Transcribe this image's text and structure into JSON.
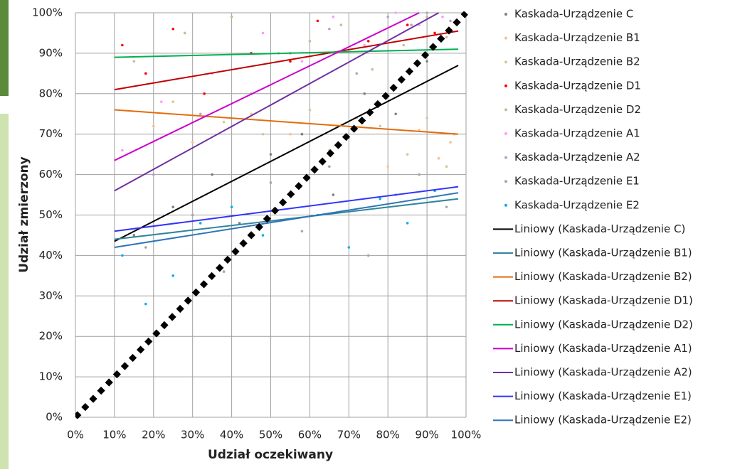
{
  "chart_data": {
    "type": "scatter",
    "xlabel": "Udział oczekiwany",
    "ylabel": "Udział zmierzony",
    "xlim": [
      0,
      100
    ],
    "ylim": [
      0,
      100
    ],
    "grid": true,
    "legend": "right",
    "xticks": [
      {
        "value": 0,
        "label": "0%"
      },
      {
        "value": 10,
        "label": "10%"
      },
      {
        "value": 20,
        "label": "20%"
      },
      {
        "value": 30,
        "label": "30%"
      },
      {
        "value": 40,
        "label": "40%"
      },
      {
        "value": 50,
        "label": "50%"
      },
      {
        "value": 60,
        "label": "60%"
      },
      {
        "value": 70,
        "label": "70%"
      },
      {
        "value": 80,
        "label": "80%"
      },
      {
        "value": 90,
        "label": "90%"
      },
      {
        "value": 100,
        "label": "100%"
      }
    ],
    "yticks": [
      {
        "value": 0,
        "label": "0%"
      },
      {
        "value": 10,
        "label": "10%"
      },
      {
        "value": 20,
        "label": "20%"
      },
      {
        "value": 30,
        "label": "30%"
      },
      {
        "value": 40,
        "label": "40%"
      },
      {
        "value": 50,
        "label": "50%"
      },
      {
        "value": 60,
        "label": "60%"
      },
      {
        "value": 70,
        "label": "70%"
      },
      {
        "value": 80,
        "label": "80%"
      },
      {
        "value": 90,
        "label": "90%"
      },
      {
        "value": 100,
        "label": "100%"
      }
    ],
    "reference_line": {
      "color": "#000000",
      "x": [
        0,
        100
      ],
      "values": [
        0,
        100
      ]
    },
    "series": [
      {
        "name": "Kaskada-Urządzenie C",
        "kind": "scatter",
        "color": "#7f7f7f",
        "x": [
          15,
          25,
          35,
          42,
          50,
          58,
          66,
          74,
          82,
          90
        ],
        "values": [
          45,
          52,
          60,
          48,
          65,
          70,
          55,
          80,
          75,
          88
        ]
      },
      {
        "name": "Kaskada-Urządzenie B1",
        "kind": "scatter",
        "color": "#fac090",
        "x": [
          20,
          30,
          45,
          55,
          65,
          72,
          80,
          88,
          93,
          96
        ],
        "values": [
          72,
          68,
          75,
          70,
          66,
          74,
          62,
          71,
          64,
          68
        ]
      },
      {
        "name": "Kaskada-Urządzenie B2",
        "kind": "scatter",
        "color": "#d9c59a",
        "x": [
          25,
          38,
          48,
          60,
          70,
          78,
          85,
          90,
          95,
          97
        ],
        "values": [
          78,
          73,
          70,
          76,
          69,
          72,
          65,
          74,
          62,
          70
        ]
      },
      {
        "name": "Kaskada-Urządzenie D1",
        "kind": "scatter",
        "color": "#ff0000",
        "x": [
          12,
          18,
          25,
          33,
          45,
          55,
          62,
          75,
          85,
          92
        ],
        "values": [
          92,
          85,
          96,
          80,
          90,
          88,
          98,
          93,
          97,
          95
        ]
      },
      {
        "name": "Kaskada-Urządzenie D2",
        "kind": "scatter",
        "color": "#c4bd97",
        "x": [
          15,
          28,
          40,
          52,
          60,
          68,
          76,
          84,
          90,
          95
        ],
        "values": [
          88,
          95,
          99,
          90,
          93,
          97,
          86,
          92,
          99,
          94
        ]
      },
      {
        "name": "Kaskada-Urządzenie A1",
        "kind": "scatter",
        "color": "#ff99ff",
        "x": [
          12,
          22,
          35,
          48,
          58,
          66,
          74,
          82,
          88,
          94
        ],
        "values": [
          66,
          78,
          85,
          95,
          88,
          99,
          92,
          100,
          97,
          99
        ]
      },
      {
        "name": "Kaskada-Urządzenie A2",
        "kind": "scatter",
        "color": "#b3a2c7",
        "x": [
          20,
          32,
          45,
          55,
          65,
          72,
          80,
          86,
          90,
          96
        ],
        "values": [
          60,
          75,
          80,
          90,
          96,
          85,
          99,
          97,
          100,
          98
        ]
      },
      {
        "name": "Kaskada-Urządzenie E1",
        "kind": "scatter",
        "color": "#a6a6a6",
        "x": [
          18,
          30,
          38,
          50,
          58,
          65,
          75,
          82,
          88,
          95
        ],
        "values": [
          42,
          50,
          36,
          58,
          46,
          62,
          40,
          55,
          60,
          52
        ]
      },
      {
        "name": "Kaskada-Urządzenie E2",
        "kind": "scatter",
        "color": "#00b0f0",
        "x": [
          12,
          18,
          25,
          32,
          40,
          48,
          55,
          62,
          70,
          78,
          85,
          92
        ],
        "values": [
          40,
          28,
          35,
          48,
          52,
          45,
          55,
          50,
          42,
          54,
          48,
          56
        ]
      },
      {
        "name": "Liniowy (Kaskada-Urządzenie C)",
        "kind": "line",
        "color": "#000000",
        "x": [
          10,
          98
        ],
        "values": [
          43.5,
          87
        ]
      },
      {
        "name": "Liniowy (Kaskada-Urządzenie B1)",
        "kind": "line",
        "color": "#31859c",
        "x": [
          10,
          98
        ],
        "values": [
          44,
          54
        ]
      },
      {
        "name": "Liniowy (Kaskada-Urządzenie B2)",
        "kind": "line",
        "color": "#e46c0a",
        "x": [
          10,
          98
        ],
        "values": [
          76,
          70
        ]
      },
      {
        "name": "Liniowy (Kaskada-Urządzenie D1)",
        "kind": "line",
        "color": "#c00000",
        "x": [
          10,
          98
        ],
        "values": [
          81,
          95.5
        ]
      },
      {
        "name": "Liniowy (Kaskada-Urządzenie D2)",
        "kind": "line",
        "color": "#00b050",
        "x": [
          10,
          98
        ],
        "values": [
          89,
          91
        ]
      },
      {
        "name": "Liniowy (Kaskada-Urządzenie A1)",
        "kind": "line",
        "color": "#cc00cc",
        "x": [
          10,
          88
        ],
        "values": [
          63.5,
          100
        ]
      },
      {
        "name": "Liniowy (Kaskada-Urządzenie A2)",
        "kind": "line",
        "color": "#7030a0",
        "x": [
          10,
          93
        ],
        "values": [
          56,
          100
        ]
      },
      {
        "name": "Liniowy (Kaskada-Urządzenie E1)",
        "kind": "line",
        "color": "#3333ff",
        "x": [
          10,
          98
        ],
        "values": [
          46,
          57
        ]
      },
      {
        "name": "Liniowy (Kaskada-Urządzenie E2)",
        "kind": "line",
        "color": "#2e75b6",
        "x": [
          10,
          98
        ],
        "values": [
          42,
          55.5
        ]
      }
    ]
  }
}
